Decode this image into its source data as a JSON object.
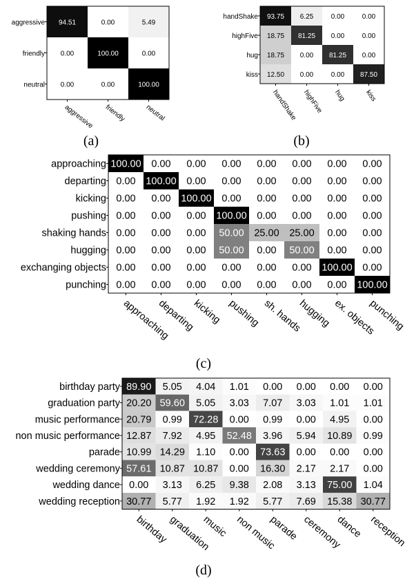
{
  "captions": [
    "(a)",
    "(b)",
    "(c)",
    "(d)"
  ],
  "chart_data": [
    {
      "type": "heatmap",
      "id": "a",
      "caption": "(a)",
      "rows": [
        "aggressive",
        "friendly",
        "neutral"
      ],
      "cols": [
        "aggressive",
        "friendly",
        "neutral"
      ],
      "values": [
        [
          "94.51",
          "0.00",
          "5.49"
        ],
        [
          "0.00",
          "100.00",
          "0.00"
        ],
        [
          "0.00",
          "0.00",
          "100.00"
        ]
      ],
      "range": [
        0,
        100
      ]
    },
    {
      "type": "heatmap",
      "id": "b",
      "caption": "(b)",
      "rows": [
        "handShake",
        "highFive",
        "hug",
        "kiss"
      ],
      "cols": [
        "handShake",
        "highFive",
        "hug",
        "kiss"
      ],
      "values": [
        [
          "93.75",
          "6.25",
          "0.00",
          "0.00"
        ],
        [
          "18.75",
          "81.25",
          "0.00",
          "0.00"
        ],
        [
          "18.75",
          "0.00",
          "81.25",
          "0.00"
        ],
        [
          "12.50",
          "0.00",
          "0.00",
          "87.50"
        ]
      ],
      "range": [
        0,
        100
      ]
    },
    {
      "type": "heatmap",
      "id": "c",
      "caption": "(c)",
      "rows": [
        "approaching",
        "departing",
        "kicking",
        "pushing",
        "shaking hands",
        "hugging",
        "exchanging objects",
        "punching"
      ],
      "cols": [
        "approaching",
        "departing",
        "kicking",
        "pushing",
        "sh. hands",
        "hugging",
        "ex. objects",
        "punching"
      ],
      "values": [
        [
          "100.00",
          "0.00",
          "0.00",
          "0.00",
          "0.00",
          "0.00",
          "0.00",
          "0.00"
        ],
        [
          "0.00",
          "100.00",
          "0.00",
          "0.00",
          "0.00",
          "0.00",
          "0.00",
          "0.00"
        ],
        [
          "0.00",
          "0.00",
          "100.00",
          "0.00",
          "0.00",
          "0.00",
          "0.00",
          "0.00"
        ],
        [
          "0.00",
          "0.00",
          "0.00",
          "100.00",
          "0.00",
          "0.00",
          "0.00",
          "0.00"
        ],
        [
          "0.00",
          "0.00",
          "0.00",
          "50.00",
          "25.00",
          "25.00",
          "0.00",
          "0.00"
        ],
        [
          "0.00",
          "0.00",
          "0.00",
          "50.00",
          "0.00",
          "50.00",
          "0.00",
          "0.00"
        ],
        [
          "0.00",
          "0.00",
          "0.00",
          "0.00",
          "0.00",
          "0.00",
          "100.00",
          "0.00"
        ],
        [
          "0.00",
          "0.00",
          "0.00",
          "0.00",
          "0.00",
          "0.00",
          "0.00",
          "100.00"
        ]
      ],
      "range": [
        0,
        100
      ]
    },
    {
      "type": "heatmap",
      "id": "d",
      "caption": "(d)",
      "rows": [
        "birthday party",
        "graduation party",
        "music performance",
        "non music performance",
        "parade",
        "wedding ceremony",
        "wedding dance",
        "wedding reception"
      ],
      "cols": [
        "birthday",
        "graduation",
        "music",
        "non music",
        "parade",
        "ceremony",
        "dance",
        "reception"
      ],
      "values": [
        [
          "89.90",
          "5.05",
          "4.04",
          "1.01",
          "0.00",
          "0.00",
          "0.00",
          "0.00"
        ],
        [
          "20.20",
          "59.60",
          "5.05",
          "3.03",
          "7.07",
          "3.03",
          "1.01",
          "1.01"
        ],
        [
          "20.79",
          "0.99",
          "72.28",
          "0.00",
          "0.99",
          "0.00",
          "4.95",
          "0.00"
        ],
        [
          "12.87",
          "7.92",
          "4.95",
          "52.48",
          "3.96",
          "5.94",
          "10.89",
          "0.99"
        ],
        [
          "10.99",
          "14.29",
          "1.10",
          "0.00",
          "73.63",
          "0.00",
          "0.00",
          "0.00"
        ],
        [
          "57.61",
          "10.87",
          "10.87",
          "0.00",
          "16.30",
          "2.17",
          "2.17",
          "0.00"
        ],
        [
          "0.00",
          "3.13",
          "6.25",
          "9.38",
          "2.08",
          "3.13",
          "75.00",
          "1.04"
        ],
        [
          "30.77",
          "5.77",
          "1.92",
          "1.92",
          "5.77",
          "7.69",
          "15.38",
          "30.77"
        ]
      ],
      "range": [
        0,
        100
      ]
    }
  ]
}
